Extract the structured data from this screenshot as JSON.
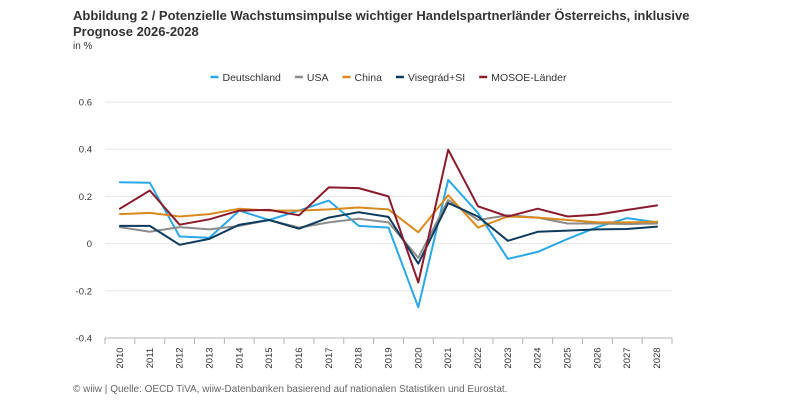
{
  "header": {
    "title": "Abbildung 2 / Potenzielle Wachstumsimpulse wichtiger Handelspartnerländer Österreichs, inklusive Prognose 2026-2028",
    "unit": "in %"
  },
  "footer": {
    "source": "© wiiw | Quelle: OECD TiVA, wiiw-Datenbanken basierend auf nationalen Statistiken und Eurostat."
  },
  "chart_data": {
    "type": "line",
    "x": [
      "2010",
      "2011",
      "2012",
      "2013",
      "2014",
      "2015",
      "2016",
      "2017",
      "2018",
      "2019",
      "2020",
      "2021",
      "2022",
      "2023",
      "2024",
      "2025",
      "2026",
      "2027",
      "2028"
    ],
    "ylim": [
      -0.4,
      0.6
    ],
    "yticks": [
      "-0.4",
      "-0.2",
      "0",
      "0.2",
      "0.4",
      "0.6"
    ],
    "grid": true,
    "legend_position": "top",
    "series": [
      {
        "name": "Deutschland",
        "color": "#2aa7e7",
        "values": [
          0.26,
          0.258,
          0.03,
          0.025,
          0.14,
          0.1,
          0.14,
          0.182,
          0.075,
          0.068,
          -0.27,
          0.27,
          0.13,
          -0.065,
          -0.035,
          0.02,
          0.07,
          0.108,
          0.09
        ]
      },
      {
        "name": "USA",
        "color": "#8c8c8c",
        "values": [
          0.07,
          0.05,
          0.07,
          0.06,
          0.075,
          0.1,
          0.068,
          0.09,
          0.105,
          0.09,
          -0.06,
          0.185,
          0.1,
          0.12,
          0.11,
          0.085,
          0.085,
          0.083,
          0.085
        ]
      },
      {
        "name": "China",
        "color": "#d98a1f",
        "values": [
          0.125,
          0.13,
          0.115,
          0.125,
          0.148,
          0.14,
          0.14,
          0.145,
          0.153,
          0.145,
          0.048,
          0.205,
          0.068,
          0.115,
          0.11,
          0.1,
          0.09,
          0.09,
          0.093
        ]
      },
      {
        "name": "Visegrád+SI",
        "color": "#0d3b5e",
        "values": [
          0.075,
          0.075,
          -0.005,
          0.02,
          0.08,
          0.1,
          0.063,
          0.11,
          0.133,
          0.113,
          -0.085,
          0.172,
          0.115,
          0.012,
          0.05,
          0.055,
          0.06,
          0.062,
          0.072
        ]
      },
      {
        "name": "MOSOE-Länder",
        "color": "#8b1a2b",
        "values": [
          0.148,
          0.225,
          0.08,
          0.103,
          0.14,
          0.143,
          0.12,
          0.238,
          0.235,
          0.2,
          -0.165,
          0.398,
          0.158,
          0.115,
          0.148,
          0.115,
          0.123,
          0.143,
          0.162
        ]
      }
    ]
  }
}
